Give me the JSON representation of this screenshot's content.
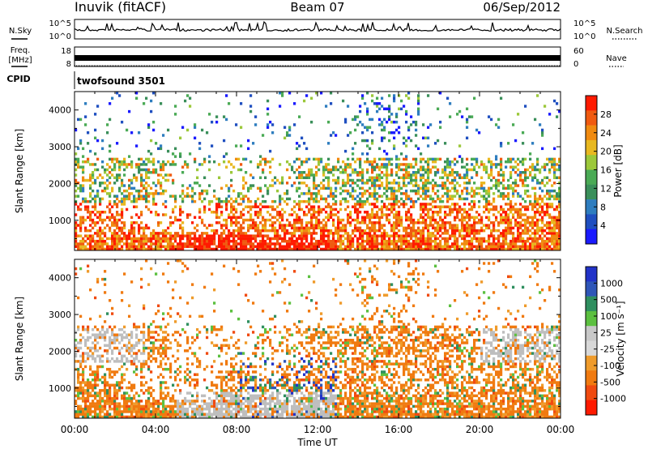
{
  "header": {
    "station": "Inuvik (fitACF)",
    "beam": "Beam 07",
    "date": "06/Sep/2012"
  },
  "noise_panel": {
    "left_label": "N.Sky",
    "right_label": "N.Search",
    "left_ticks": [
      "10^5",
      "10^0"
    ],
    "right_ticks": [
      "10^5",
      "10^0"
    ]
  },
  "freq_panel": {
    "left_label_1": "Freq.",
    "left_label_2": "[MHz]",
    "right_label": "Nave",
    "left_ticks": [
      "18",
      "8"
    ],
    "right_ticks": [
      "60",
      "0"
    ]
  },
  "cpid_panel": {
    "label": "CPID",
    "value": "twofsound 3501"
  },
  "colors": {
    "power_scale": [
      "#1a1aff",
      "#1f4fc0",
      "#2e7dbf",
      "#3a8f5a",
      "#4aaa55",
      "#9cc83a",
      "#e8b820",
      "#f08a10",
      "#f05a10",
      "#ff1a00"
    ],
    "velocity_scale": [
      "#2233c8",
      "#2f56b8",
      "#2f8f5f",
      "#5cc040",
      "#c8c8c8",
      "#d8d8d8",
      "#ef9b2b",
      "#f07a10",
      "#f04a10",
      "#ff1a00"
    ],
    "ground_scatter": "#bebebe"
  },
  "chart_data": [
    {
      "type": "heatmap",
      "title": "Power",
      "xlabel": "",
      "ylabel": "Slant Range [km]",
      "x_ticks": [
        "00:00",
        "04:00",
        "08:00",
        "12:00",
        "16:00",
        "20:00",
        "00:00"
      ],
      "y_ticks": [
        1000,
        2000,
        3000,
        4000
      ],
      "ylim": [
        180,
        4500
      ],
      "colorbar_label": "Power [dB]",
      "colorbar_ticks": [
        "4",
        "8",
        "12",
        "16",
        "20",
        "24",
        "28"
      ],
      "colorbar_range": [
        0,
        30
      ]
    },
    {
      "type": "heatmap",
      "title": "Velocity",
      "xlabel": "Time UT",
      "ylabel": "Slant Range [km]",
      "x_ticks": [
        "00:00",
        "04:00",
        "08:00",
        "12:00",
        "16:00",
        "20:00",
        "00:00"
      ],
      "y_ticks": [
        1000,
        2000,
        3000,
        4000
      ],
      "ylim": [
        180,
        4500
      ],
      "colorbar_label": "Velocity [m s⁻¹]",
      "colorbar_ticks": [
        "1000",
        "500",
        "100",
        "25",
        "-25",
        "-100",
        "-500",
        "-1000"
      ],
      "colorbar_range": [
        -1000,
        1000
      ]
    }
  ]
}
